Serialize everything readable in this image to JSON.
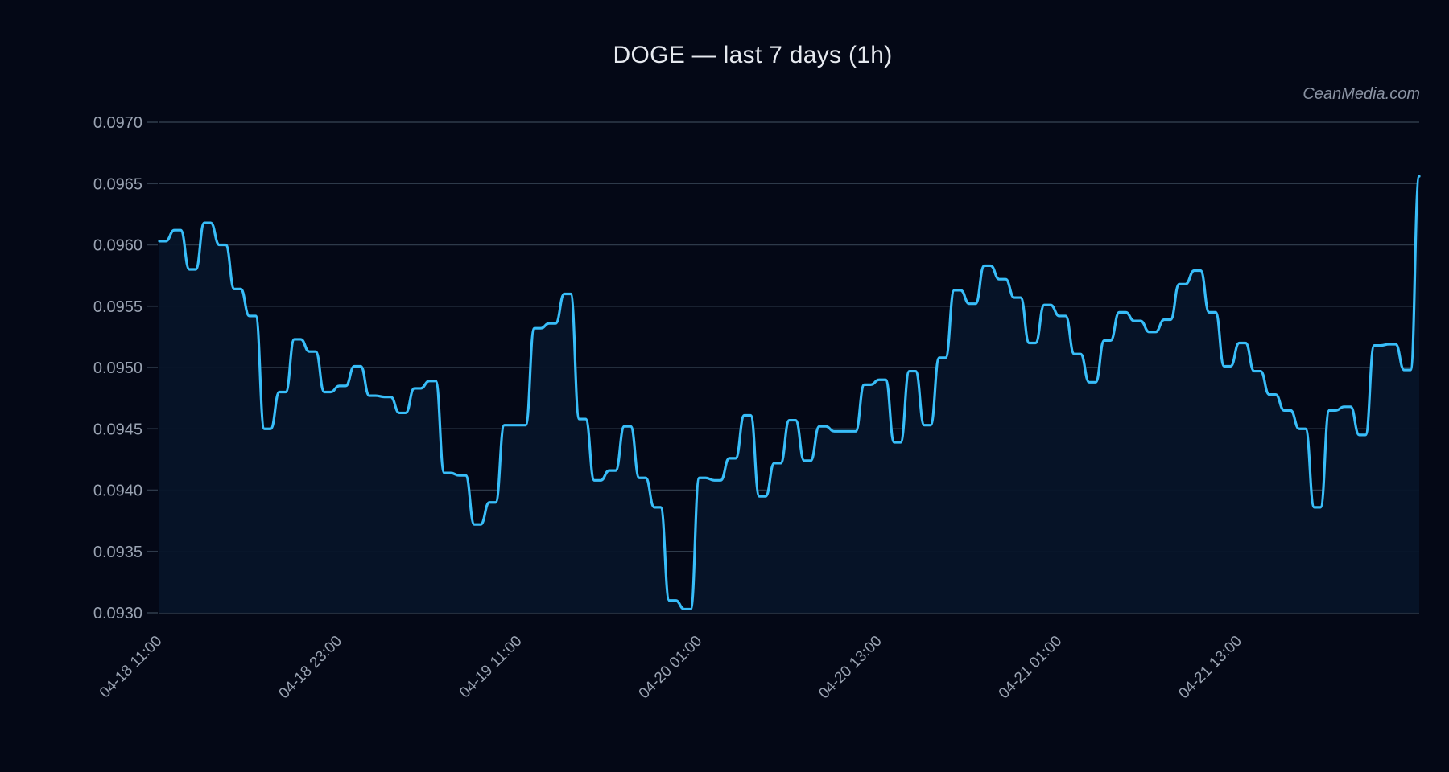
{
  "title": "DOGE — last 7 days (1h)",
  "watermark": "CeanMedia.com",
  "colors": {
    "background": "#040816",
    "line": "#38bdf8",
    "fill": "#061428",
    "grid": "#2e3a4a",
    "tick_label": "#9aa3b2",
    "title": "#e6e9ef"
  },
  "chart_data": {
    "type": "area",
    "title": "DOGE — last 7 days (1h)",
    "xlabel": "",
    "ylabel": "",
    "ylim": [
      0.093,
      0.097
    ],
    "y_ticks": [
      "0.0930",
      "0.0935",
      "0.0940",
      "0.0945",
      "0.0950",
      "0.0955",
      "0.0960",
      "0.0965",
      "0.0970"
    ],
    "x_tick_labels": [
      "04-18 11:00",
      "04-18 23:00",
      "04-19 11:00",
      "04-20 01:00",
      "04-20 13:00",
      "04-21 01:00",
      "04-21 13:00"
    ],
    "x_tick_indices": [
      0,
      12,
      24,
      36,
      48,
      60,
      72
    ],
    "grid": "horizontal",
    "legend": "none",
    "series": [
      {
        "name": "DOGE",
        "values": [
          0.09603,
          0.09612,
          0.0958,
          0.09618,
          0.096,
          0.09564,
          0.09542,
          0.0945,
          0.0948,
          0.09523,
          0.09513,
          0.0948,
          0.09485,
          0.09501,
          0.09477,
          0.09476,
          0.09463,
          0.09483,
          0.09489,
          0.09414,
          0.09412,
          0.09372,
          0.0939,
          0.09453,
          0.09453,
          0.09532,
          0.09536,
          0.0956,
          0.09458,
          0.09408,
          0.09416,
          0.09452,
          0.0941,
          0.09386,
          0.0931,
          0.09303,
          0.0941,
          0.09408,
          0.09426,
          0.09461,
          0.09395,
          0.09422,
          0.09457,
          0.09424,
          0.09452,
          0.09448,
          0.09448,
          0.09486,
          0.0949,
          0.09439,
          0.09497,
          0.09453,
          0.09508,
          0.09563,
          0.09552,
          0.09583,
          0.09572,
          0.09557,
          0.0952,
          0.09551,
          0.09542,
          0.09511,
          0.09488,
          0.09522,
          0.09545,
          0.09538,
          0.09529,
          0.09539,
          0.09568,
          0.09579,
          0.09545,
          0.09501,
          0.0952,
          0.09497,
          0.09478,
          0.09465,
          0.0945,
          0.09386,
          0.09465,
          0.09468,
          0.09445,
          0.09518,
          0.09519,
          0.09498,
          0.09656
        ]
      }
    ]
  }
}
